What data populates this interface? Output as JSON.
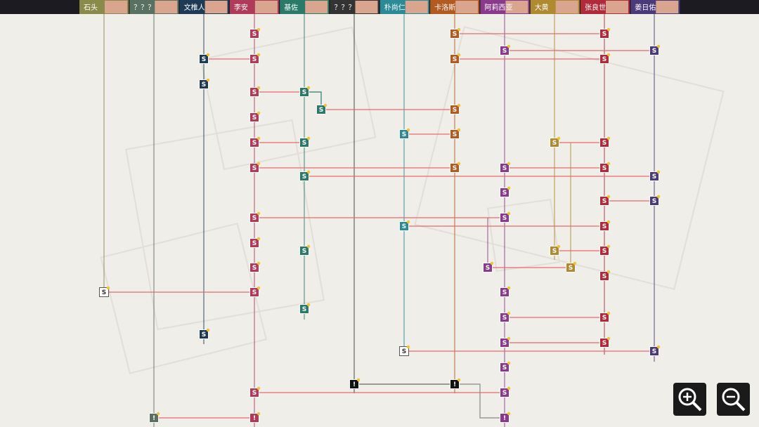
{
  "characters": [
    {
      "name": "石头"
    },
    {
      "name": "？？？"
    },
    {
      "name": "文椎人"
    },
    {
      "name": "李安"
    },
    {
      "name": "基佐"
    },
    {
      "name": "？？？"
    },
    {
      "name": "朴尚仁"
    },
    {
      "name": "卡洛斯"
    },
    {
      "name": "阿莉西亚"
    },
    {
      "name": "大黄"
    },
    {
      "name": "张良世"
    },
    {
      "name": "姜日佑"
    }
  ],
  "nodes": [
    {
      "label": "S"
    },
    {
      "label": "S"
    },
    {
      "label": "S"
    },
    {
      "label": "S"
    },
    {
      "label": "S"
    },
    {
      "label": "S"
    },
    {
      "label": "S"
    },
    {
      "label": "S"
    },
    {
      "label": "S"
    },
    {
      "label": "S"
    },
    {
      "label": "S"
    },
    {
      "label": "!"
    },
    {
      "label": "S"
    },
    {
      "label": "S"
    },
    {
      "label": "S"
    },
    {
      "label": "S"
    },
    {
      "label": "!"
    },
    {
      "label": "S"
    },
    {
      "label": "S"
    },
    {
      "label": "S"
    },
    {
      "label": "S"
    },
    {
      "label": "S"
    },
    {
      "label": "S"
    },
    {
      "label": "S"
    },
    {
      "label": "S"
    },
    {
      "label": "S"
    },
    {
      "label": "!"
    },
    {
      "label": "S"
    },
    {
      "label": "S"
    },
    {
      "label": "S"
    },
    {
      "label": "S"
    },
    {
      "label": "S"
    },
    {
      "label": "!"
    },
    {
      "label": "S"
    },
    {
      "label": "S"
    },
    {
      "label": "S"
    },
    {
      "label": "S"
    },
    {
      "label": "S"
    },
    {
      "label": "S"
    },
    {
      "label": "S"
    },
    {
      "label": "S"
    },
    {
      "label": "S"
    },
    {
      "label": "!"
    },
    {
      "label": "S"
    },
    {
      "label": "S"
    },
    {
      "label": "S"
    },
    {
      "label": "S"
    },
    {
      "label": "S"
    },
    {
      "label": "S"
    },
    {
      "label": "S"
    },
    {
      "label": "S"
    },
    {
      "label": "S"
    },
    {
      "label": "S"
    },
    {
      "label": "S"
    },
    {
      "label": "S"
    },
    {
      "label": "S"
    },
    {
      "label": "S"
    },
    {
      "label": "S"
    },
    {
      "label": "S"
    },
    {
      "label": "S"
    },
    {
      "label": "S"
    }
  ]
}
